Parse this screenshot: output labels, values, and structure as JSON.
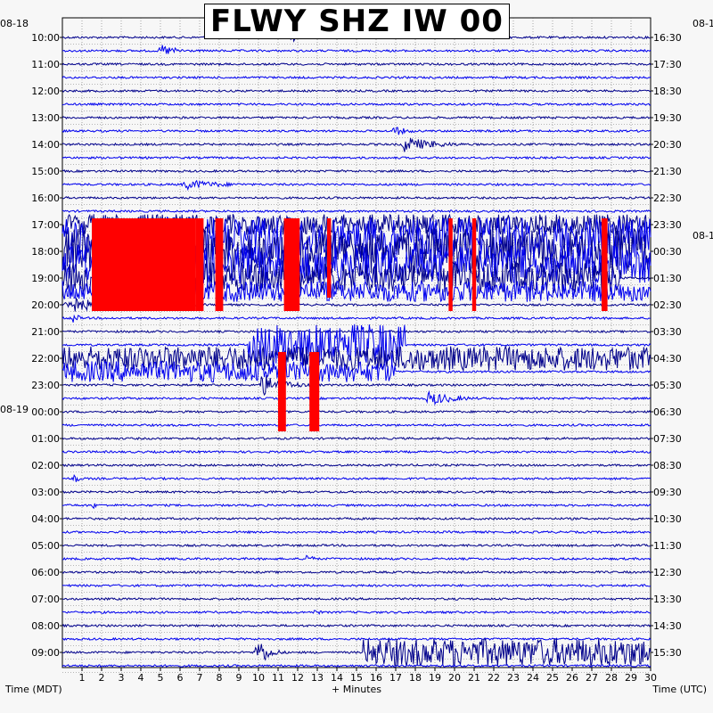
{
  "chart_data": {
    "type": "line",
    "title": "FLWY SHZ IW 00",
    "xlabel": "+ Minutes",
    "left_axis_label": "Time (MDT)",
    "right_axis_label": "Time (UTC)",
    "left_date_top": "08-18",
    "left_date_mid": "08-19",
    "right_date_top": "08-1",
    "right_date_mid": "08-1",
    "x_ticks": [
      "1",
      "2",
      "3",
      "4",
      "5",
      "6",
      "7",
      "8",
      "9",
      "10",
      "11",
      "12",
      "13",
      "14",
      "15",
      "16",
      "17",
      "18",
      "19",
      "20",
      "21",
      "22",
      "23",
      "24",
      "25",
      "26",
      "27",
      "28",
      "29",
      "30"
    ],
    "xlim": [
      0,
      30
    ],
    "left_hour_labels": [
      "10:00",
      "11:00",
      "12:00",
      "13:00",
      "14:00",
      "15:00",
      "16:00",
      "17:00",
      "18:00",
      "19:00",
      "20:00",
      "21:00",
      "22:00",
      "23:00",
      "00:00",
      "01:00",
      "02:00",
      "03:00",
      "04:00",
      "05:00",
      "06:00",
      "07:00",
      "08:00",
      "09:00"
    ],
    "right_hour_labels": [
      "16:30",
      "17:30",
      "18:30",
      "19:30",
      "20:30",
      "21:30",
      "22:30",
      "23:30",
      "00:30",
      "01:30",
      "02:30",
      "03:30",
      "04:30",
      "05:30",
      "06:30",
      "07:30",
      "08:30",
      "09:30",
      "10:30",
      "11:30",
      "12:30",
      "13:30",
      "14:30",
      "15:30"
    ],
    "traces_per_hour": 2,
    "trace_colors": [
      "#00008b",
      "#0000ee"
    ],
    "clip_color": "#ff0000",
    "grid": true,
    "events": [
      {
        "row": 0,
        "start_min": 11.6,
        "end_min": 12.4,
        "amplitude": 0.55
      },
      {
        "row": 1,
        "start_min": 4.9,
        "end_min": 7.5,
        "amplitude": 0.45
      },
      {
        "row": 7,
        "start_min": 16.8,
        "end_min": 19.0,
        "amplitude": 0.35
      },
      {
        "row": 8,
        "start_min": 17.2,
        "end_min": 22.0,
        "amplitude": 0.55
      },
      {
        "row": 11,
        "start_min": 6.0,
        "end_min": 12.0,
        "amplitude": 0.35
      },
      {
        "row": 14,
        "start_min": 0.0,
        "end_min": 30.0,
        "amplitude": 0.6
      },
      {
        "row": 15,
        "start_min": 0.0,
        "end_min": 30.0,
        "amplitude": 1.2
      },
      {
        "row": 16,
        "start_min": 0.0,
        "end_min": 30.0,
        "amplitude": 1.3
      },
      {
        "row": 17,
        "start_min": 0.0,
        "end_min": 30.0,
        "amplitude": 1.1
      },
      {
        "row": 18,
        "start_min": 0.0,
        "end_min": 28.5,
        "amplitude": 0.9
      },
      {
        "row": 19,
        "start_min": 0.0,
        "end_min": 30.0,
        "amplitude": 0.6
      },
      {
        "row": 20,
        "start_min": 0.0,
        "end_min": 4.5,
        "amplitude": 0.7
      },
      {
        "row": 21,
        "start_min": 0.5,
        "end_min": 1.2,
        "amplitude": 0.6
      },
      {
        "row": 23,
        "start_min": 9.5,
        "end_min": 17.5,
        "amplitude": 1.2
      },
      {
        "row": 24,
        "start_min": 0.0,
        "end_min": 30.0,
        "amplitude": 0.7
      },
      {
        "row": 25,
        "start_min": 0.0,
        "end_min": 17.0,
        "amplitude": 0.6
      },
      {
        "row": 26,
        "start_min": 10.0,
        "end_min": 13.5,
        "amplitude": 0.8
      },
      {
        "row": 27,
        "start_min": 18.5,
        "end_min": 22.5,
        "amplitude": 0.5
      },
      {
        "row": 33,
        "start_min": 0.5,
        "end_min": 1.2,
        "amplitude": 0.6
      },
      {
        "row": 35,
        "start_min": 1.5,
        "end_min": 2.0,
        "amplitude": 0.35
      },
      {
        "row": 39,
        "start_min": 12.4,
        "end_min": 13.3,
        "amplitude": 0.45
      },
      {
        "row": 43,
        "start_min": 12.8,
        "end_min": 13.8,
        "amplitude": 0.25
      },
      {
        "row": 46,
        "start_min": 9.8,
        "end_min": 11.5,
        "amplitude": 1.2
      },
      {
        "row": 46,
        "start_min": 15.3,
        "end_min": 30.0,
        "amplitude": 0.8
      }
    ],
    "clipped_segments": [
      {
        "row_start": 14,
        "row_end": 20,
        "start_min": 1.5,
        "end_min": 6.8
      },
      {
        "row_start": 14,
        "row_end": 20,
        "start_min": 6.8,
        "end_min": 7.2
      },
      {
        "row_start": 14,
        "row_end": 20,
        "start_min": 7.8,
        "end_min": 8.2
      },
      {
        "row_start": 14,
        "row_end": 20,
        "start_min": 11.3,
        "end_min": 12.1
      },
      {
        "row_start": 14,
        "row_end": 19,
        "start_min": 13.5,
        "end_min": 13.7
      },
      {
        "row_start": 14,
        "row_end": 20,
        "start_min": 19.7,
        "end_min": 19.9
      },
      {
        "row_start": 14,
        "row_end": 20,
        "start_min": 20.9,
        "end_min": 21.1
      },
      {
        "row_start": 14,
        "row_end": 20,
        "start_min": 27.5,
        "end_min": 27.8
      },
      {
        "row_start": 24,
        "row_end": 29,
        "start_min": 11.0,
        "end_min": 11.4
      },
      {
        "row_start": 24,
        "row_end": 29,
        "start_min": 12.6,
        "end_min": 13.1
      }
    ]
  }
}
